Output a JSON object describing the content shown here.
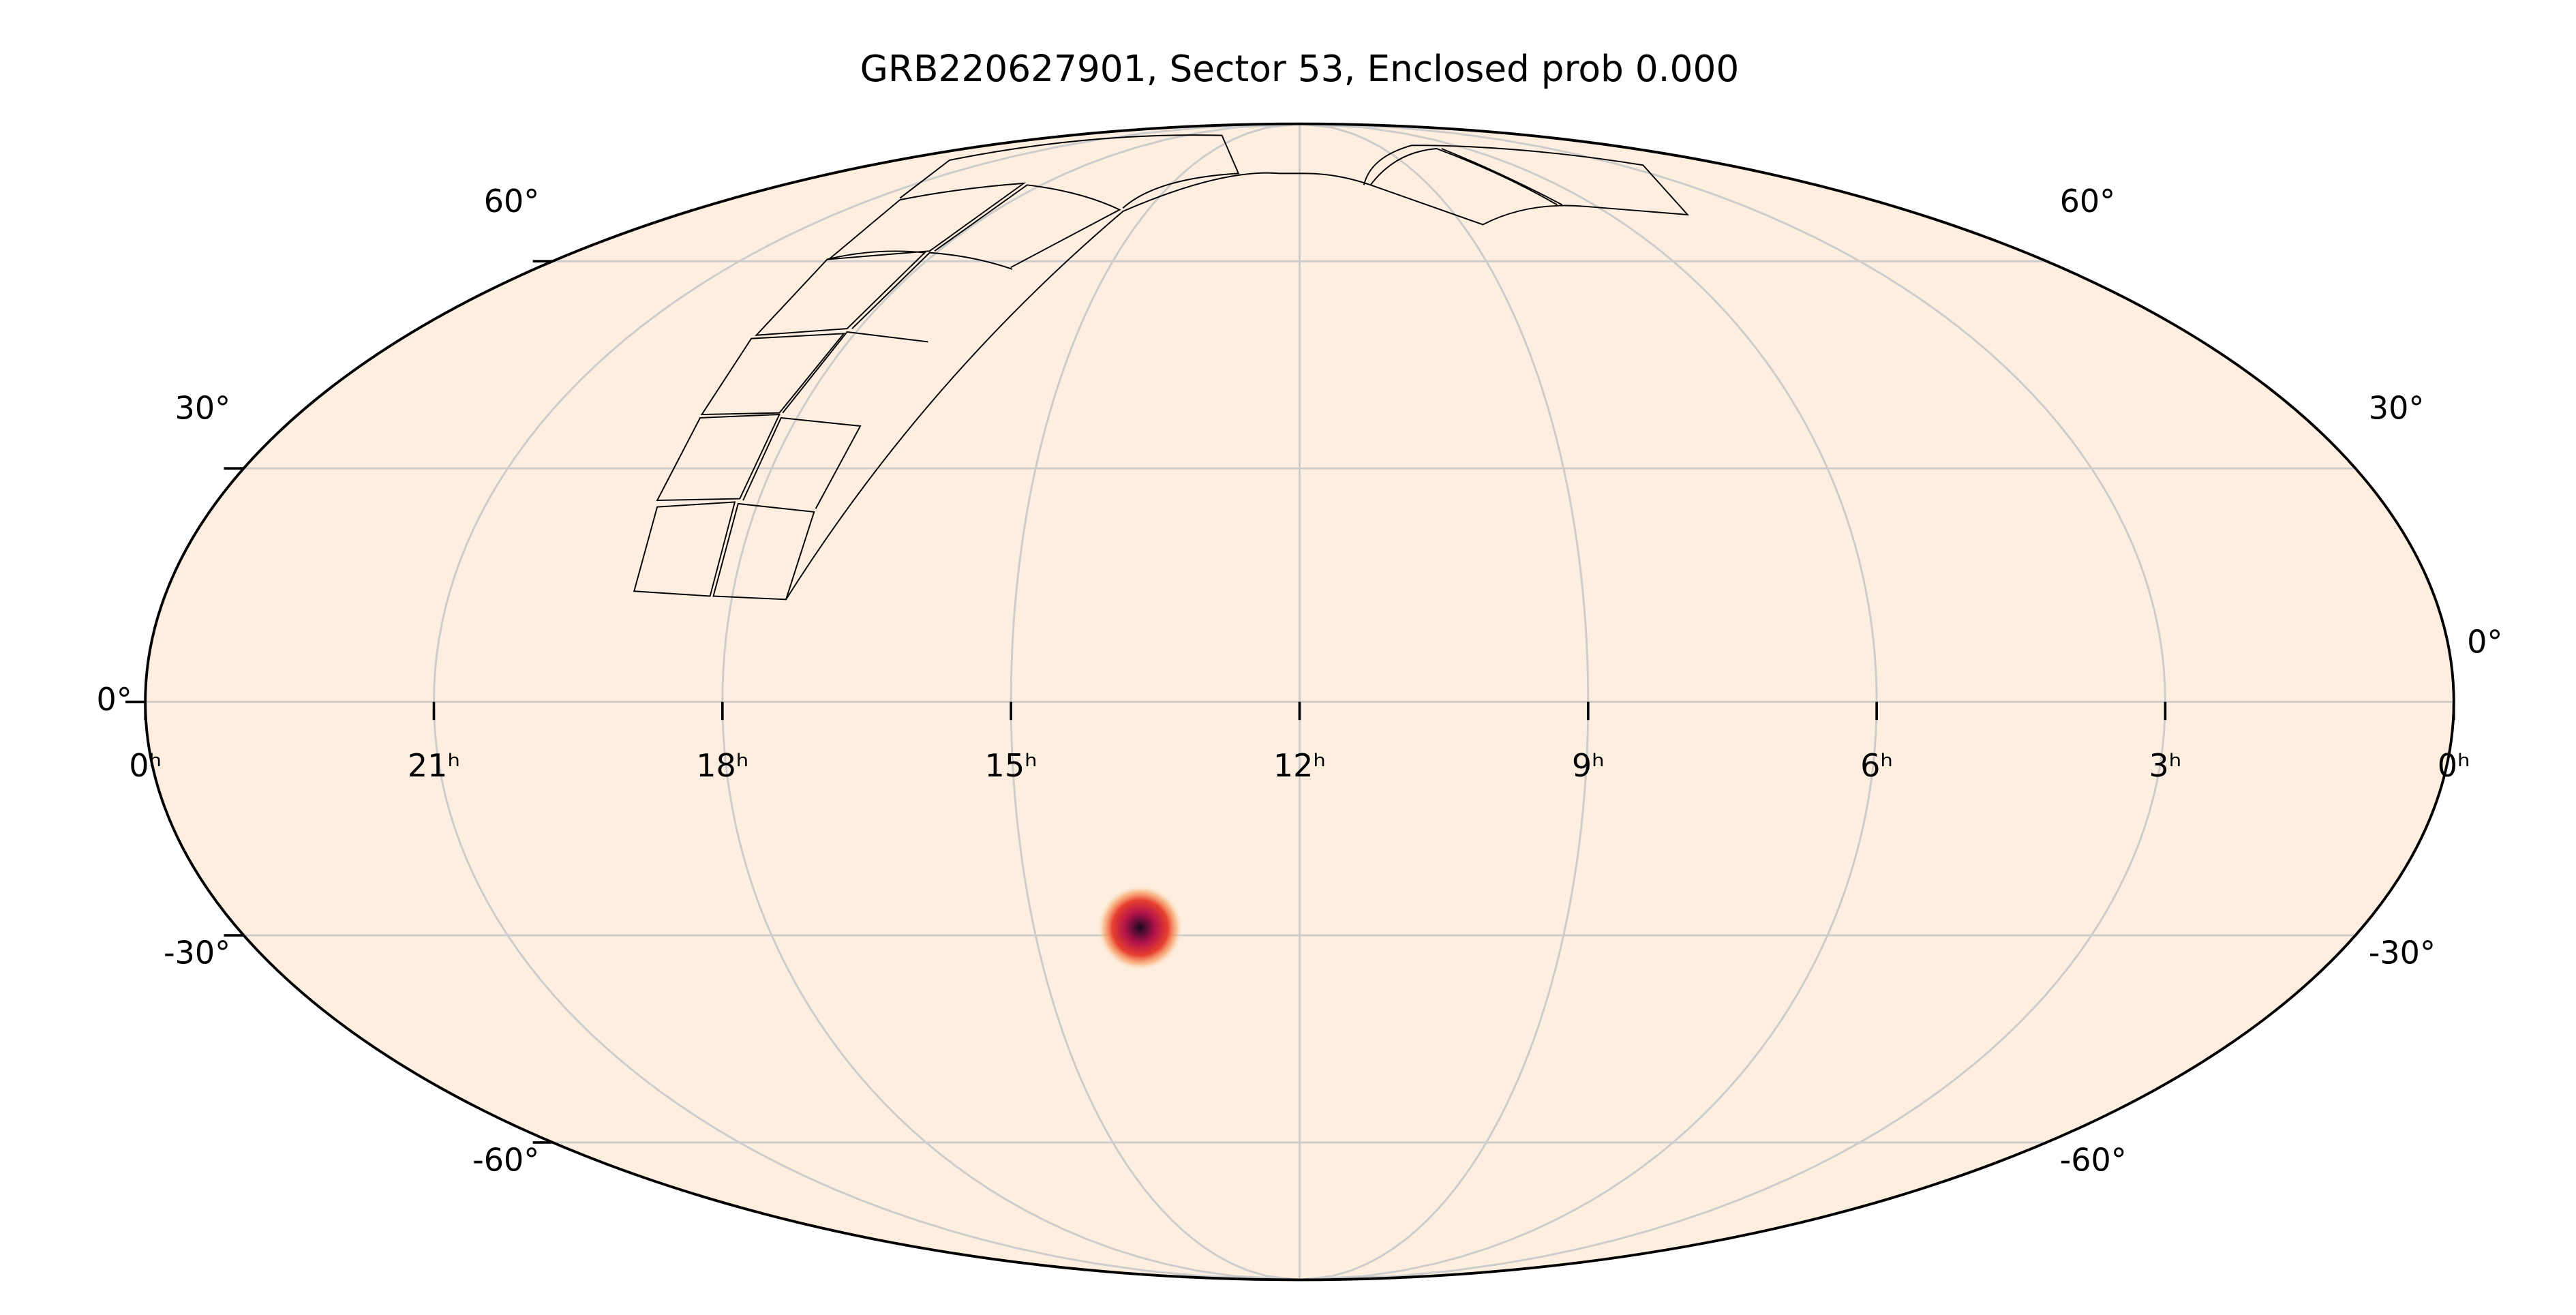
{
  "chart_data": {
    "type": "mollweide",
    "title": "GRB220627901, Sector 53, Enclosed prob 0.000",
    "xlim": [
      24,
      0
    ],
    "xticks": [
      {
        "value": 24,
        "label": "0ʰ"
      },
      {
        "value": 21,
        "label": "21ʰ"
      },
      {
        "value": 18,
        "label": "18ʰ"
      },
      {
        "value": 15,
        "label": "15ʰ"
      },
      {
        "value": 12,
        "label": "12ʰ"
      },
      {
        "value": 9,
        "label": "9ʰ"
      },
      {
        "value": 6,
        "label": "6ʰ"
      },
      {
        "value": 3,
        "label": "3ʰ"
      },
      {
        "value": 0,
        "label": "0ʰ"
      }
    ],
    "ylim": [
      -90,
      90
    ],
    "yticks": [
      {
        "value": -60,
        "label": "-60°"
      },
      {
        "value": -30,
        "label": "-30°"
      },
      {
        "value": 0,
        "label": "0°"
      },
      {
        "value": 30,
        "label": "30°"
      },
      {
        "value": 60,
        "label": "60°"
      }
    ],
    "grid": true,
    "background_color": "#fdeee0",
    "source": {
      "ra": 13.8,
      "dec": -29,
      "colors": [
        "#1a0a1e",
        "#b0124a",
        "#e8402f",
        "#f8a060"
      ]
    }
  }
}
